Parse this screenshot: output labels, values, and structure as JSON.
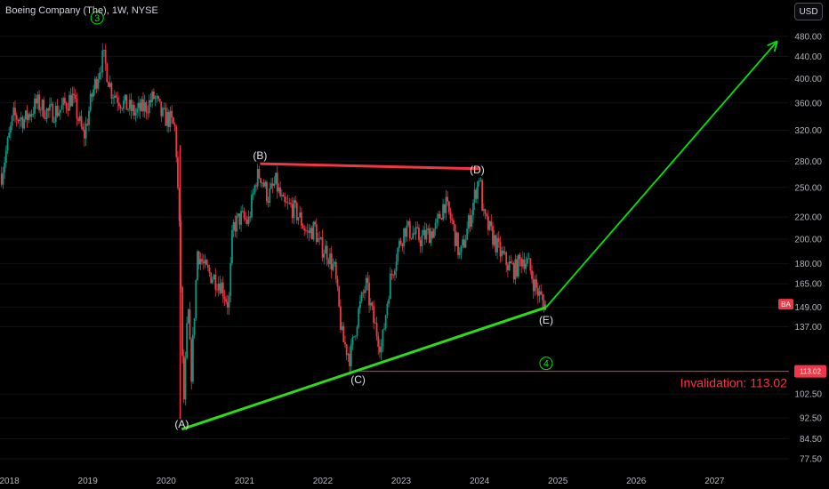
{
  "header": {
    "title": "Boeing Company (The), 1W, NYSE",
    "currency": "USD"
  },
  "colors": {
    "up": "#089981",
    "down": "#f23645",
    "projection": "#00e600",
    "support": "#32d81c",
    "resistance": "#f23645",
    "invalidation": "#f23645"
  },
  "chart_data": {
    "type": "candlestick",
    "scale": "log",
    "ylim": [
      74,
      520
    ],
    "y_ticks": [
      {
        "value": 480,
        "label": "480.00"
      },
      {
        "value": 440,
        "label": "440.00"
      },
      {
        "value": 400,
        "label": "400.00"
      },
      {
        "value": 360,
        "label": "360.00"
      },
      {
        "value": 320,
        "label": "320.00"
      },
      {
        "value": 280,
        "label": "280.00"
      },
      {
        "value": 250,
        "label": "250.00"
      },
      {
        "value": 220,
        "label": "220.00"
      },
      {
        "value": 200,
        "label": "200.00"
      },
      {
        "value": 180,
        "label": "180.00"
      },
      {
        "value": 165,
        "label": "165.00"
      },
      {
        "value": 149,
        "label": "149.00"
      },
      {
        "value": 137,
        "label": "137.00"
      },
      {
        "value": 113.02,
        "label": "113.02"
      },
      {
        "value": 102.5,
        "label": "102.50"
      },
      {
        "value": 92.5,
        "label": "92.50"
      },
      {
        "value": 84.5,
        "label": "84.50"
      },
      {
        "value": 77.5,
        "label": "77.50"
      }
    ],
    "x_ticks": [
      {
        "value": 2018,
        "label": "2018"
      },
      {
        "value": 2019,
        "label": "2019"
      },
      {
        "value": 2020,
        "label": "2020"
      },
      {
        "value": 2021,
        "label": "2021"
      },
      {
        "value": 2022,
        "label": "2022"
      },
      {
        "value": 2023,
        "label": "2023"
      },
      {
        "value": 2024,
        "label": "2024"
      },
      {
        "value": 2025,
        "label": "2025"
      },
      {
        "value": 2026,
        "label": "2026"
      },
      {
        "value": 2027,
        "label": "2027"
      }
    ],
    "xlim": [
      2017.88,
      2027.95
    ],
    "price_path": [
      [
        2017.9,
        265
      ],
      [
        2018.05,
        340
      ],
      [
        2018.2,
        335
      ],
      [
        2018.35,
        360
      ],
      [
        2018.5,
        345
      ],
      [
        2018.65,
        350
      ],
      [
        2018.8,
        370
      ],
      [
        2018.95,
        310
      ],
      [
        2019.05,
        370
      ],
      [
        2019.15,
        420
      ],
      [
        2019.2,
        440
      ],
      [
        2019.3,
        380
      ],
      [
        2019.45,
        360
      ],
      [
        2019.6,
        345
      ],
      [
        2019.75,
        355
      ],
      [
        2019.85,
        370
      ],
      [
        2019.95,
        340
      ],
      [
        2020.05,
        335
      ],
      [
        2020.12,
        320
      ],
      [
        2020.18,
        190
      ],
      [
        2020.22,
        95
      ],
      [
        2020.28,
        150
      ],
      [
        2020.32,
        110
      ],
      [
        2020.4,
        190
      ],
      [
        2020.5,
        175
      ],
      [
        2020.6,
        170
      ],
      [
        2020.7,
        165
      ],
      [
        2020.8,
        150
      ],
      [
        2020.85,
        210
      ],
      [
        2020.95,
        220
      ],
      [
        2021.05,
        215
      ],
      [
        2021.15,
        260
      ],
      [
        2021.2,
        265
      ],
      [
        2021.3,
        240
      ],
      [
        2021.4,
        255
      ],
      [
        2021.5,
        230
      ],
      [
        2021.6,
        230
      ],
      [
        2021.7,
        220
      ],
      [
        2021.8,
        205
      ],
      [
        2021.9,
        210
      ],
      [
        2021.95,
        195
      ],
      [
        2022.05,
        190
      ],
      [
        2022.15,
        175
      ],
      [
        2022.25,
        130
      ],
      [
        2022.35,
        120
      ],
      [
        2022.45,
        145
      ],
      [
        2022.55,
        165
      ],
      [
        2022.65,
        140
      ],
      [
        2022.75,
        125
      ],
      [
        2022.85,
        165
      ],
      [
        2022.95,
        190
      ],
      [
        2023.05,
        210
      ],
      [
        2023.15,
        205
      ],
      [
        2023.25,
        200
      ],
      [
        2023.35,
        205
      ],
      [
        2023.45,
        210
      ],
      [
        2023.55,
        235
      ],
      [
        2023.65,
        215
      ],
      [
        2023.75,
        185
      ],
      [
        2023.85,
        210
      ],
      [
        2023.95,
        245
      ],
      [
        2024.0,
        265
      ],
      [
        2024.05,
        220
      ],
      [
        2024.15,
        205
      ],
      [
        2024.25,
        190
      ],
      [
        2024.35,
        180
      ],
      [
        2024.45,
        175
      ],
      [
        2024.55,
        185
      ],
      [
        2024.62,
        180
      ],
      [
        2024.7,
        165
      ],
      [
        2024.78,
        155
      ],
      [
        2024.85,
        150
      ]
    ],
    "wave_labels": [
      {
        "label": "(A)",
        "x": 2020.2,
        "y": 90
      },
      {
        "label": "(B)",
        "x": 2021.2,
        "y": 287
      },
      {
        "label": "(C)",
        "x": 2022.45,
        "y": 109
      },
      {
        "label": "(D)",
        "x": 2023.97,
        "y": 270
      },
      {
        "label": "(E)",
        "x": 2024.85,
        "y": 141
      }
    ],
    "circle_labels": [
      {
        "label": "3",
        "x": 2019.12,
        "y": 520
      },
      {
        "label": "4",
        "x": 2024.85,
        "y": 117
      }
    ],
    "lines": [
      {
        "name": "support",
        "from": [
          2020.2,
          88
        ],
        "to": [
          2024.85,
          149
        ],
        "color": "#32d81c"
      },
      {
        "name": "resistance",
        "from": [
          2021.2,
          277
        ],
        "to": [
          224.0,
          271
        ],
        "color": "#f23645"
      },
      {
        "name": "invalidation",
        "from": [
          2022.45,
          113.02
        ],
        "to": [
          2027.95,
          113.02
        ],
        "color": "#f23645"
      },
      {
        "name": "projection",
        "from": [
          2024.85,
          149
        ],
        "to": [
          2027.8,
          470
        ],
        "color": "#00e600"
      }
    ],
    "invalidation_text": "Invalidation: 113.02",
    "symbol_tag": "BA",
    "price_tag": "113.02"
  }
}
